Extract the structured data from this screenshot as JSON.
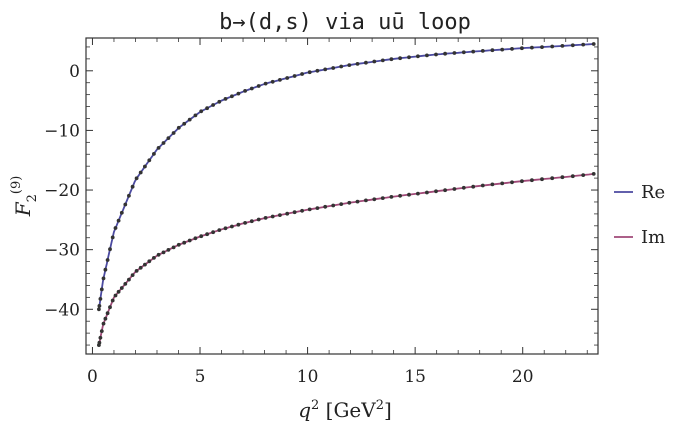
{
  "chart_data": {
    "type": "line",
    "title": "b→(d,s) via uū loop",
    "xlabel": {
      "base": "q",
      "sup": "2",
      "unit_open": " [GeV",
      "unit_sup": "2",
      "unit_close": "]"
    },
    "ylabel": {
      "base": "F",
      "sub": "2",
      "sup": "(9)"
    },
    "xlim": [
      -0.3,
      23.5
    ],
    "ylim": [
      -47.5,
      5.5
    ],
    "xticks": [
      0,
      5,
      10,
      15,
      20
    ],
    "yticks": [
      0,
      -10,
      -20,
      -30,
      -40
    ],
    "xtick_labels": [
      "0",
      "5",
      "10",
      "15",
      "20"
    ],
    "ytick_labels": [
      "0",
      "−10",
      "−20",
      "−30",
      "−40"
    ],
    "grid": false,
    "legend_position": "right",
    "series": [
      {
        "name": "Re",
        "color": "#4b4aa0",
        "x": [
          0.3,
          0.5,
          1.0,
          2.0,
          3.0,
          4.0,
          5.0,
          6.0,
          7.0,
          8.0,
          10.0,
          12.0,
          14.0,
          16.0,
          18.0,
          20.0,
          22.0,
          23.3
        ],
        "y": [
          -40.0,
          -35.0,
          -27.0,
          -18.3,
          -13.2,
          -9.6,
          -6.9,
          -5.0,
          -3.5,
          -2.2,
          -0.3,
          1.0,
          2.0,
          2.75,
          3.3,
          3.8,
          4.2,
          4.5
        ]
      },
      {
        "name": "Im",
        "color": "#a04a78",
        "x": [
          0.3,
          0.5,
          1.0,
          2.0,
          3.0,
          4.0,
          5.0,
          6.0,
          7.0,
          8.0,
          10.0,
          12.0,
          14.0,
          16.0,
          18.0,
          20.0,
          22.0,
          23.3
        ],
        "y": [
          -46.0,
          -42.5,
          -38.0,
          -33.7,
          -31.0,
          -29.2,
          -27.8,
          -26.6,
          -25.6,
          -24.7,
          -23.3,
          -22.1,
          -21.1,
          -20.2,
          -19.3,
          -18.5,
          -17.8,
          -17.3
        ]
      }
    ]
  }
}
